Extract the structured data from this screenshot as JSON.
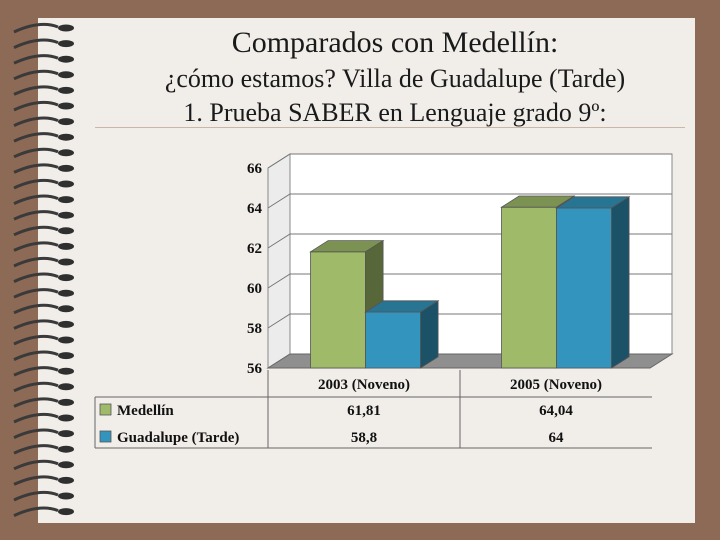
{
  "slide": {
    "title_line1": "Comparados con Medellín:",
    "title_line2": "¿cómo estamos? Villa de Guadalupe (Tarde)",
    "title_line3": "1. Prueba SABER en Lenguaje grado 9º:"
  },
  "colors": {
    "background": "#8d6a55",
    "paper": "#f1eeea",
    "medellin": "#9fbb6a",
    "guadalupe": "#3395bd"
  },
  "chart_data": {
    "type": "bar",
    "title": "",
    "xlabel": "",
    "ylabel": "",
    "ylim": [
      56,
      66
    ],
    "yticks": [
      56,
      58,
      60,
      62,
      64,
      66
    ],
    "ytick_labels": [
      "56",
      "58",
      "60",
      "62",
      "64",
      "66"
    ],
    "grid": true,
    "categories": [
      "2003 (Noveno)",
      "2005 (Noveno)"
    ],
    "series": [
      {
        "name": "Medellín",
        "values": [
          61.81,
          64.04
        ],
        "labels": [
          "61,81",
          "64,04"
        ],
        "color": "#9fbb6a"
      },
      {
        "name": "Guadalupe (Tarde)",
        "values": [
          58.8,
          64
        ],
        "labels": [
          "58,8",
          "64"
        ],
        "color": "#3395bd"
      }
    ],
    "legend": "data-table-below"
  }
}
